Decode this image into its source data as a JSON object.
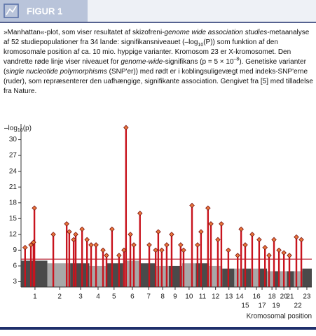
{
  "header": {
    "title": "FIGUR 1"
  },
  "caption": [
    {
      "text": "»Manhattan«-plot, som viser resultatet af skizofreni-",
      "style": "normal"
    },
    {
      "text": "genome wide association studies",
      "style": "italic"
    },
    {
      "text": "-metaanalyse af 52 studiepopulationer fra 34 lande: signifikansniveauet (–log",
      "style": "normal"
    },
    {
      "text": "10",
      "style": "sub"
    },
    {
      "text": "(P)) som funktion af den kromosomale position af ca. 10 mio. hyppige varianter. Kromosom 23 er X-kromosomet. Den vandrette røde linje viser niveauet for ",
      "style": "normal"
    },
    {
      "text": "genome-wide",
      "style": "italic"
    },
    {
      "text": "-signifikans (p = 5 × 10",
      "style": "normal"
    },
    {
      "text": "–8",
      "style": "sup"
    },
    {
      "text": "). Genetiske varianter (",
      "style": "normal"
    },
    {
      "text": "single nucleotide polymorphisms",
      "style": "italic"
    },
    {
      "text": " (SNP'er)) med rødt er i koblingsuligevægt med indeks-SNP'erne (ruder), som repræsenterer den uafhængige, signifikante association. Gengivet fra [5] med tilladelse fra Nature.",
      "style": "normal"
    }
  ],
  "chart_data": {
    "type": "manhattan",
    "ylabel": [
      "–log",
      "10",
      "(p)"
    ],
    "xlabel": "Kromosomal position",
    "xlim": [
      0,
      100
    ],
    "ylim": [
      2,
      33
    ],
    "yticks": [
      3,
      6,
      9,
      12,
      15,
      18,
      21,
      24,
      27,
      30
    ],
    "xticks": [
      {
        "value": 4.8,
        "label": "1"
      },
      {
        "value": 13.3,
        "label": "2"
      },
      {
        "value": 20.5,
        "label": "3"
      },
      {
        "value": 26.5,
        "label": "4"
      },
      {
        "value": 32.0,
        "label": "5"
      },
      {
        "value": 38.3,
        "label": "6"
      },
      {
        "value": 43.9,
        "label": "7"
      },
      {
        "value": 48.7,
        "label": "8"
      },
      {
        "value": 53.0,
        "label": "9"
      },
      {
        "value": 57.8,
        "label": "10"
      },
      {
        "value": 62.4,
        "label": "11"
      },
      {
        "value": 66.9,
        "label": "12"
      },
      {
        "value": 71.5,
        "label": "13"
      },
      {
        "value": 75.2,
        "label": "14"
      },
      {
        "value": 77.1,
        "label": "15"
      },
      {
        "value": 81.0,
        "label": "16"
      },
      {
        "value": 82.9,
        "label": "17"
      },
      {
        "value": 86.3,
        "label": "18"
      },
      {
        "value": 87.7,
        "label": "19"
      },
      {
        "value": 90.4,
        "label": "20"
      },
      {
        "value": 92.5,
        "label": "21"
      },
      {
        "value": 95.2,
        "label": "22"
      },
      {
        "value": 98.3,
        "label": "23"
      }
    ],
    "background": [
      7,
      6.5,
      6.5,
      6,
      6.5,
      7,
      6.5,
      6,
      6,
      6.5,
      6.5,
      6,
      5.5,
      5.5,
      5.5,
      5.5,
      5.5,
      5,
      5,
      5,
      5,
      5,
      5.5
    ],
    "threshold": 7.3,
    "index_snps": {
      "x": [
        1.4,
        3.4,
        4.3,
        4.6,
        11.1,
        15.7,
        16.6,
        18.1,
        18.8,
        21.0,
        22.7,
        24.1,
        25.8,
        28.2,
        29.4,
        31.3,
        33.7,
        36.1,
        35.4,
        37.6,
        38.8,
        40.9,
        44.1,
        46.3,
        47.2,
        48.4,
        50.1,
        51.8,
        54.9,
        55.9,
        58.8,
        60.7,
        61.9,
        64.3,
        65.3,
        67.7,
        68.9,
        71.3,
        74.5,
        75.7,
        77.1,
        79.5,
        81.9,
        83.9,
        85.3,
        87.0,
        88.7,
        90.4,
        92.3,
        94.7,
        96.4
      ],
      "y": [
        9.5,
        10,
        10.5,
        17,
        12,
        14,
        12.5,
        11,
        12,
        13,
        11,
        10,
        10,
        9,
        8,
        13,
        8,
        32.3,
        9,
        12,
        10,
        16,
        10,
        9,
        12.5,
        9,
        10,
        12,
        10,
        9,
        17.5,
        10,
        12.5,
        17,
        14,
        11,
        14,
        9,
        8,
        13,
        10,
        12,
        11,
        9.5,
        8,
        11,
        9,
        8.5,
        8,
        11.5,
        11
      ]
    },
    "colors": {
      "band_dark": "#4a4a4a",
      "band_light": "#a8a8a8",
      "signal": "#c8141e",
      "diamond": "#e8763a",
      "diamond_edge": "#7a1010",
      "threshold": "#b01020",
      "axis": "#333333"
    }
  }
}
